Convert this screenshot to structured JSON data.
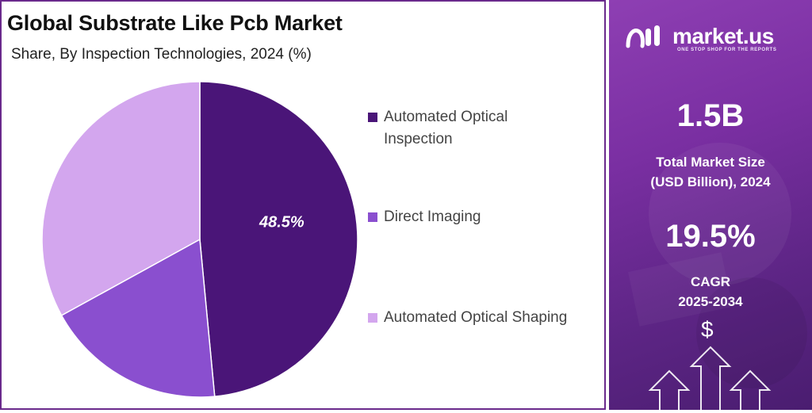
{
  "header": {
    "title": "Global Substrate Like Pcb Market",
    "subtitle": "Share, By Inspection Technologies, 2024 (%)"
  },
  "chart_data": {
    "type": "pie",
    "title": "Global Substrate Like Pcb Market",
    "subtitle": "Share, By Inspection Technologies, 2024 (%)",
    "categories": [
      "Automated Optical Inspection",
      "Direct Imaging",
      "Automated Optical Shaping"
    ],
    "values": [
      48.5,
      18.5,
      33.0
    ],
    "colors": [
      "#4a1578",
      "#8a4fcf",
      "#d3a6ee"
    ],
    "data_labels": [
      "48.5%",
      "",
      ""
    ],
    "legend_position": "right"
  },
  "legend": {
    "items": [
      {
        "line1": "Automated Optical",
        "line2": "Inspection",
        "color": "#4a1578"
      },
      {
        "line1": "Direct Imaging",
        "line2": "",
        "color": "#8a4fcf"
      },
      {
        "line1": "Automated Optical Shaping",
        "line2": "",
        "color": "#d3a6ee"
      }
    ]
  },
  "sidebar": {
    "brand_name": "market.us",
    "tagline": "ONE STOP SHOP FOR THE REPORTS",
    "market_size_value": "1.5B",
    "market_size_label_line1": "Total Market Size",
    "market_size_label_line2": "(USD Billion), 2024",
    "cagr_value": "19.5%",
    "cagr_label_line1": "CAGR",
    "cagr_label_line2": "2025-2034",
    "currency_symbol": "$",
    "colors": {
      "gradient_top": "#8e3fb3",
      "gradient_bottom": "#4a1d70"
    }
  }
}
